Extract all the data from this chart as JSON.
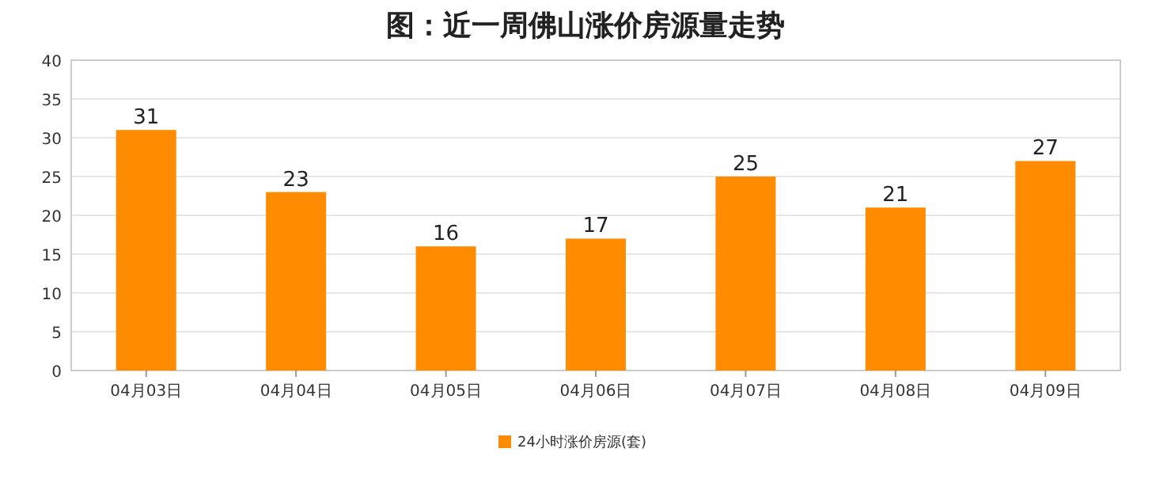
{
  "chart_data": {
    "type": "bar",
    "title": "图：近一周佛山涨价房源量走势",
    "categories": [
      "04月03日",
      "04月04日",
      "04月05日",
      "04月06日",
      "04月07日",
      "04月08日",
      "04月09日"
    ],
    "series": [
      {
        "name": "24小时涨价房源(套)",
        "color": "#ff8c00",
        "values": [
          31,
          23,
          16,
          17,
          25,
          21,
          27
        ]
      }
    ],
    "ylim": [
      0,
      40
    ],
    "yticks": [
      0,
      5,
      10,
      15,
      20,
      25,
      30,
      35,
      40
    ],
    "grid": "y",
    "legend": "bottom",
    "data_labels": true
  }
}
